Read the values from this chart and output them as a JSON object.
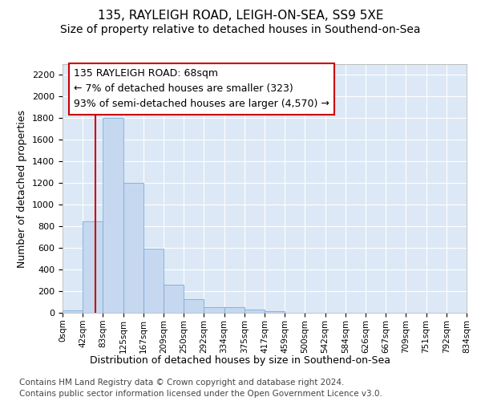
{
  "title": "135, RAYLEIGH ROAD, LEIGH-ON-SEA, SS9 5XE",
  "subtitle": "Size of property relative to detached houses in Southend-on-Sea",
  "xlabel": "Distribution of detached houses by size in Southend-on-Sea",
  "ylabel": "Number of detached properties",
  "bar_values": [
    25,
    845,
    1800,
    1200,
    590,
    260,
    125,
    50,
    50,
    32,
    18,
    0,
    0,
    0,
    0,
    0,
    0,
    0,
    0,
    0
  ],
  "bar_labels": [
    "0sqm",
    "42sqm",
    "83sqm",
    "125sqm",
    "167sqm",
    "209sqm",
    "250sqm",
    "292sqm",
    "334sqm",
    "375sqm",
    "417sqm",
    "459sqm",
    "500sqm",
    "542sqm",
    "584sqm",
    "626sqm",
    "667sqm",
    "709sqm",
    "751sqm",
    "792sqm",
    "834sqm"
  ],
  "bar_color": "#c5d8f0",
  "bar_edge_color": "#7aadd4",
  "vline_color": "#cc0000",
  "vline_x": 1.63,
  "annotation_text": "135 RAYLEIGH ROAD: 68sqm\n← 7% of detached houses are smaller (323)\n93% of semi-detached houses are larger (4,570) →",
  "annotation_box_edgecolor": "#cc0000",
  "ylim": [
    0,
    2300
  ],
  "yticks": [
    0,
    200,
    400,
    600,
    800,
    1000,
    1200,
    1400,
    1600,
    1800,
    2000,
    2200
  ],
  "bg_color": "#dce8f5",
  "footer_line1": "Contains HM Land Registry data © Crown copyright and database right 2024.",
  "footer_line2": "Contains public sector information licensed under the Open Government Licence v3.0.",
  "title_fontsize": 11,
  "subtitle_fontsize": 10,
  "annotation_fontsize": 9,
  "footer_fontsize": 7.5,
  "ylabel_fontsize": 9,
  "xlabel_fontsize": 9,
  "ytick_fontsize": 8,
  "xtick_fontsize": 7.5
}
